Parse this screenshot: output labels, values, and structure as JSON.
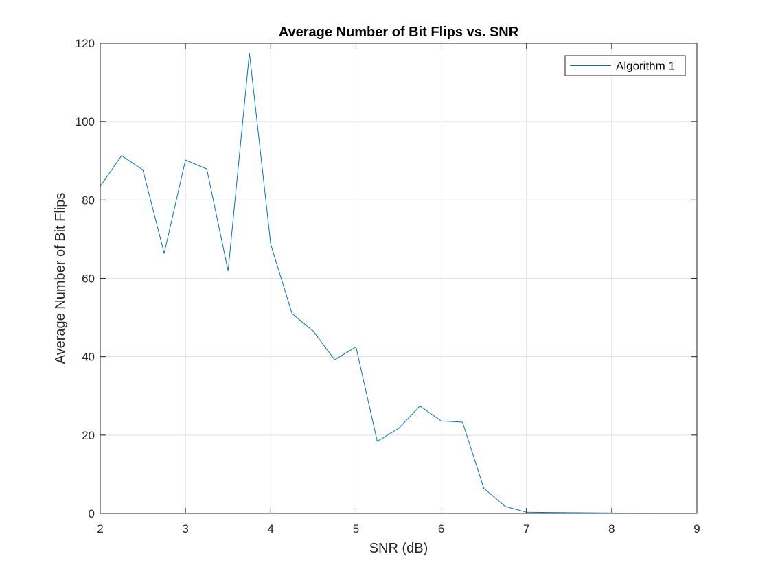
{
  "chart_data": {
    "type": "line",
    "title": "Average Number of Bit Flips vs. SNR",
    "xlabel": "SNR (dB)",
    "ylabel": "Average Number of Bit Flips",
    "xlim": [
      2,
      9
    ],
    "ylim": [
      0,
      120
    ],
    "xticks": [
      "2",
      "3",
      "4",
      "5",
      "6",
      "7",
      "8",
      "9"
    ],
    "yticks": [
      "0",
      "20",
      "40",
      "60",
      "80",
      "100",
      "120"
    ],
    "grid": true,
    "legend_position": "top-right",
    "series": [
      {
        "name": "Algorithm 1",
        "color": "#0072BD",
        "x": [
          2,
          2.25,
          2.5,
          2.75,
          3,
          3.25,
          3.5,
          3.75,
          4,
          4.25,
          4.5,
          4.75,
          5,
          5.25,
          5.5,
          5.75,
          6,
          6.25,
          6.5,
          6.75,
          7,
          7.25,
          7.5,
          7.75,
          8,
          8.25,
          8.5
        ],
        "y": [
          83.5,
          91.3,
          87.7,
          66.4,
          90.2,
          87.9,
          61.9,
          117.5,
          68.7,
          51.0,
          46.5,
          39.2,
          42.5,
          18.4,
          21.7,
          27.4,
          23.6,
          23.3,
          6.4,
          1.8,
          0.3,
          0.25,
          0.2,
          0.15,
          0.1,
          0.05,
          0.02
        ]
      }
    ]
  }
}
